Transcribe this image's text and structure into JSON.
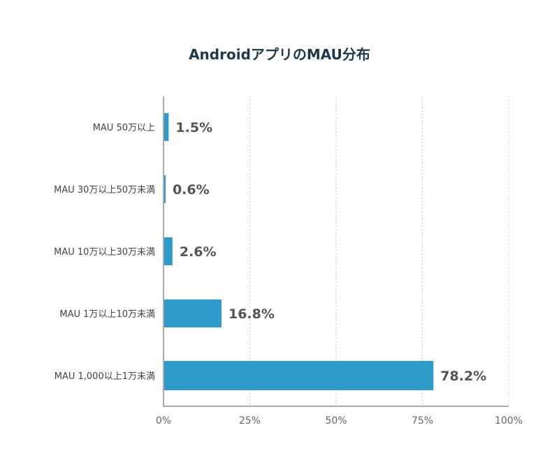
{
  "chart_data": {
    "type": "bar",
    "orientation": "horizontal",
    "title": "AndroidアプリのMAU分布",
    "categories": [
      "MAU 50万以上",
      "MAU 30万以上50万未満",
      "MAU 10万以上30万未満",
      "MAU 1万以上10万未満",
      "MAU 1,000以上1万未満"
    ],
    "values": [
      1.5,
      0.6,
      2.6,
      16.8,
      78.2
    ],
    "data_labels": [
      "1.5%",
      "0.6%",
      "2.6%",
      "16.8%",
      "78.2%"
    ],
    "x_ticks": [
      "0%",
      "25%",
      "50%",
      "75%",
      "100%"
    ],
    "xlim": [
      0,
      100
    ],
    "xlabel": "",
    "ylabel": "",
    "grid": "vertical dotted",
    "bar_color": "#2e9ccb"
  }
}
